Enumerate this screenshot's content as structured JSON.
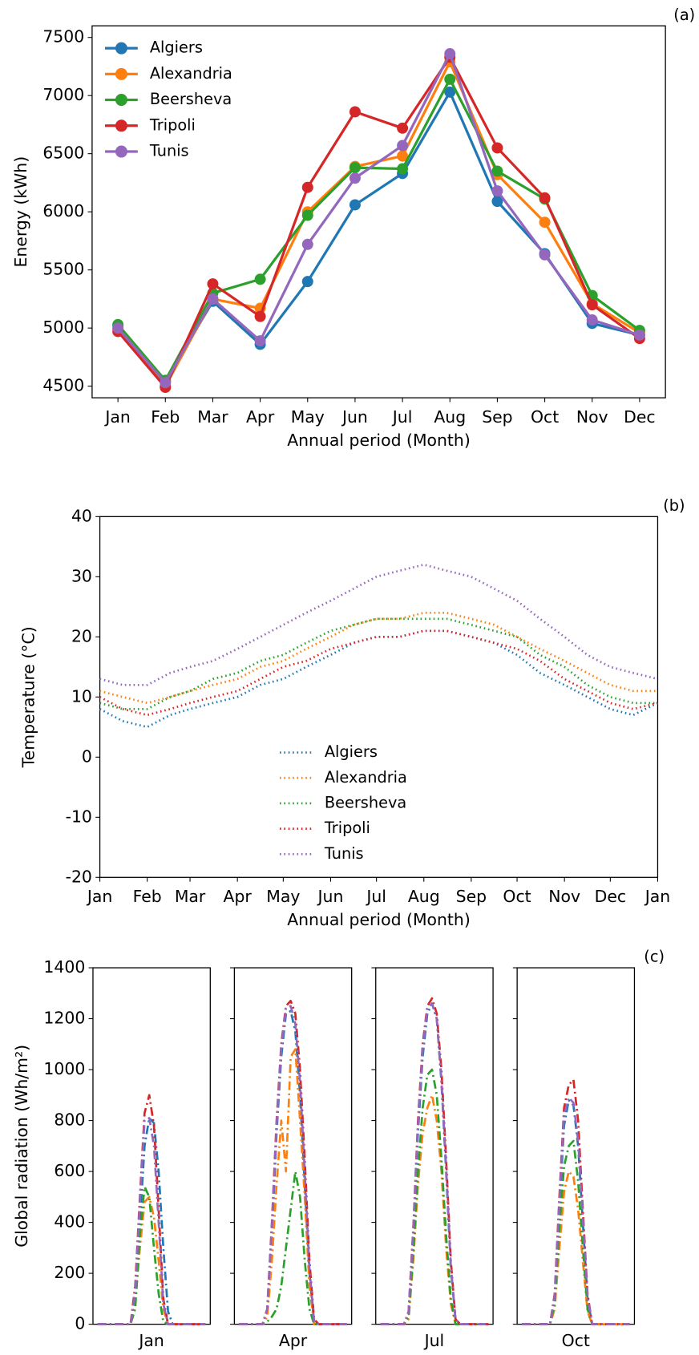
{
  "chart_data": [
    {
      "type": "line",
      "panel_label": "(a)",
      "xlabel": "Annual period (Month)",
      "ylabel": "Energy (kWh)",
      "categories": [
        "Jan",
        "Feb",
        "Mar",
        "Apr",
        "May",
        "Jun",
        "Jul",
        "Aug",
        "Sep",
        "Oct",
        "Nov",
        "Dec"
      ],
      "ylim": [
        4400,
        7600
      ],
      "yticks": [
        4500,
        5000,
        5500,
        6000,
        6500,
        7000,
        7500
      ],
      "markers": true,
      "legend": "upper left",
      "series": [
        {
          "name": "Algiers",
          "color": "#1f77b4",
          "values": [
            5020,
            4540,
            5230,
            4860,
            5400,
            6060,
            6330,
            7030,
            6090,
            5640,
            5040,
            4940
          ]
        },
        {
          "name": "Alexandria",
          "color": "#ff7f0e",
          "values": [
            4990,
            4500,
            5250,
            5170,
            6000,
            6390,
            6480,
            7290,
            6320,
            5910,
            5210,
            4960
          ]
        },
        {
          "name": "Beersheva",
          "color": "#2ca02c",
          "values": [
            5030,
            4550,
            5300,
            5420,
            5970,
            6380,
            6370,
            7140,
            6350,
            6110,
            5280,
            4980
          ]
        },
        {
          "name": "Tripoli",
          "color": "#d62728",
          "values": [
            4970,
            4490,
            5380,
            5100,
            6210,
            6860,
            6720,
            7330,
            6550,
            6120,
            5200,
            4910
          ]
        },
        {
          "name": "Tunis",
          "color": "#9467bd",
          "values": [
            5000,
            4530,
            5250,
            4890,
            5720,
            6290,
            6570,
            7360,
            6180,
            5630,
            5070,
            4940
          ]
        }
      ]
    },
    {
      "type": "line",
      "panel_label": "(b)",
      "xlabel": "Annual period (Month)",
      "ylabel": "Temperature (°C)",
      "x": [
        0,
        15,
        31,
        46,
        59,
        74,
        90,
        105,
        120,
        135,
        151,
        166,
        181,
        196,
        212,
        227,
        243,
        258,
        273,
        288,
        304,
        319,
        334,
        349,
        365
      ],
      "xlim": [
        0,
        365
      ],
      "xticks": [
        {
          "value": 0,
          "label": "Jan"
        },
        {
          "value": 31,
          "label": "Feb"
        },
        {
          "value": 59,
          "label": "Mar"
        },
        {
          "value": 90,
          "label": "Apr"
        },
        {
          "value": 120,
          "label": "May"
        },
        {
          "value": 151,
          "label": "Jun"
        },
        {
          "value": 181,
          "label": "Jul"
        },
        {
          "value": 212,
          "label": "Aug"
        },
        {
          "value": 243,
          "label": "Sep"
        },
        {
          "value": 273,
          "label": "Oct"
        },
        {
          "value": 304,
          "label": "Nov"
        },
        {
          "value": 334,
          "label": "Dec"
        },
        {
          "value": 365,
          "label": "Jan"
        }
      ],
      "ylim": [
        -20,
        40
      ],
      "yticks": [
        -20,
        -10,
        0,
        10,
        20,
        30,
        40
      ],
      "line_style": "dotted",
      "legend": "lower center",
      "series": [
        {
          "name": "Algiers",
          "color": "#1f77b4",
          "values": [
            8,
            6,
            5,
            7,
            8,
            9,
            10,
            12,
            13,
            15,
            17,
            19,
            20,
            20,
            21,
            21,
            20,
            19,
            17,
            14,
            12,
            10,
            8,
            7,
            9
          ]
        },
        {
          "name": "Alexandria",
          "color": "#ff7f0e",
          "values": [
            11,
            10,
            9,
            10,
            11,
            12,
            13,
            15,
            16,
            18,
            20,
            22,
            23,
            23,
            24,
            24,
            23,
            22,
            20,
            18,
            16,
            14,
            12,
            11,
            11
          ]
        },
        {
          "name": "Beersheva",
          "color": "#2ca02c",
          "values": [
            9,
            8,
            8,
            10,
            11,
            13,
            14,
            16,
            17,
            19,
            21,
            22,
            23,
            23,
            23,
            23,
            22,
            21,
            20,
            17,
            15,
            12,
            10,
            9,
            9
          ]
        },
        {
          "name": "Tripoli",
          "color": "#d62728",
          "values": [
            10,
            8,
            7,
            8,
            9,
            10,
            11,
            13,
            15,
            16,
            18,
            19,
            20,
            20,
            21,
            21,
            20,
            19,
            18,
            16,
            13,
            11,
            9,
            8,
            9
          ]
        },
        {
          "name": "Tunis",
          "color": "#9467bd",
          "values": [
            13,
            12,
            12,
            14,
            15,
            16,
            18,
            20,
            22,
            24,
            26,
            28,
            30,
            31,
            32,
            31,
            30,
            28,
            26,
            23,
            20,
            17,
            15,
            14,
            13
          ]
        }
      ]
    },
    {
      "type": "line",
      "panel_label": "(c)",
      "ylabel": "Global radiation (Wh/m²)",
      "ylim": [
        0,
        1400
      ],
      "yticks": [
        0,
        200,
        400,
        600,
        800,
        1000,
        1200,
        1400
      ],
      "line_style": "dashdot",
      "panels": [
        {
          "label": "Jan",
          "series": [
            {
              "color": "#1f77b4",
              "values": [
                0,
                0,
                0,
                0,
                0,
                0,
                0,
                0,
                100,
                400,
                700,
                810,
                790,
                600,
                300,
                50,
                0,
                0,
                0,
                0,
                0,
                0,
                0,
                0
              ]
            },
            {
              "color": "#ff7f0e",
              "values": [
                0,
                0,
                0,
                0,
                0,
                0,
                0,
                0,
                80,
                300,
                480,
                500,
                420,
                250,
                60,
                0,
                0,
                0,
                0,
                0,
                0,
                0,
                0,
                0
              ]
            },
            {
              "color": "#2ca02c",
              "values": [
                0,
                0,
                0,
                0,
                0,
                0,
                0,
                0,
                60,
                350,
                540,
                500,
                300,
                120,
                10,
                0,
                0,
                0,
                0,
                0,
                0,
                0,
                0,
                0
              ]
            },
            {
              "color": "#d62728",
              "values": [
                0,
                0,
                0,
                0,
                0,
                0,
                0,
                0,
                150,
                500,
                830,
                900,
                780,
                450,
                100,
                0,
                0,
                0,
                0,
                0,
                0,
                0,
                0,
                0
              ]
            },
            {
              "color": "#9467bd",
              "values": [
                0,
                0,
                0,
                0,
                0,
                0,
                0,
                0,
                120,
                480,
                800,
                810,
                700,
                400,
                80,
                0,
                0,
                0,
                0,
                0,
                0,
                0,
                0,
                0
              ]
            }
          ]
        },
        {
          "label": "Apr",
          "series": [
            {
              "color": "#1f77b4",
              "values": [
                0,
                0,
                0,
                0,
                0,
                0,
                50,
                350,
                750,
                1050,
                1220,
                1230,
                1150,
                900,
                550,
                200,
                10,
                0,
                0,
                0,
                0,
                0,
                0,
                0
              ]
            },
            {
              "color": "#ff7f0e",
              "values": [
                0,
                0,
                0,
                0,
                0,
                0,
                30,
                250,
                550,
                800,
                600,
                1050,
                1080,
                800,
                500,
                150,
                0,
                0,
                0,
                0,
                0,
                0,
                0,
                0
              ]
            },
            {
              "color": "#2ca02c",
              "values": [
                0,
                0,
                0,
                0,
                0,
                0,
                10,
                30,
                60,
                150,
                300,
                450,
                600,
                500,
                250,
                60,
                0,
                0,
                0,
                0,
                0,
                0,
                0,
                0
              ]
            },
            {
              "color": "#d62728",
              "values": [
                0,
                0,
                0,
                0,
                0,
                0,
                60,
                400,
                800,
                1100,
                1250,
                1270,
                1220,
                1000,
                650,
                250,
                20,
                0,
                0,
                0,
                0,
                0,
                0,
                0
              ]
            },
            {
              "color": "#9467bd",
              "values": [
                0,
                0,
                0,
                0,
                0,
                0,
                60,
                380,
                780,
                1080,
                1240,
                1250,
                1180,
                950,
                600,
                220,
                10,
                0,
                0,
                0,
                0,
                0,
                0,
                0
              ]
            }
          ]
        },
        {
          "label": "Jul",
          "series": [
            {
              "color": "#1f77b4",
              "values": [
                0,
                0,
                0,
                0,
                0,
                0,
                40,
                350,
                750,
                1050,
                1220,
                1260,
                1200,
                950,
                600,
                220,
                20,
                0,
                0,
                0,
                0,
                0,
                0,
                0
              ]
            },
            {
              "color": "#ff7f0e",
              "values": [
                0,
                0,
                0,
                0,
                0,
                0,
                20,
                250,
                550,
                750,
                850,
                900,
                800,
                600,
                300,
                80,
                0,
                0,
                0,
                0,
                0,
                0,
                0,
                0
              ]
            },
            {
              "color": "#2ca02c",
              "values": [
                0,
                0,
                0,
                0,
                0,
                0,
                30,
                280,
                600,
                850,
                980,
                1000,
                900,
                650,
                350,
                100,
                0,
                0,
                0,
                0,
                0,
                0,
                0,
                0
              ]
            },
            {
              "color": "#d62728",
              "values": [
                0,
                0,
                0,
                0,
                0,
                0,
                50,
                380,
                800,
                1100,
                1250,
                1280,
                1220,
                1000,
                650,
                250,
                20,
                0,
                0,
                0,
                0,
                0,
                0,
                0
              ]
            },
            {
              "color": "#9467bd",
              "values": [
                0,
                0,
                0,
                0,
                0,
                0,
                50,
                370,
                780,
                1080,
                1240,
                1260,
                1200,
                960,
                620,
                230,
                20,
                0,
                0,
                0,
                0,
                0,
                0,
                0
              ]
            }
          ]
        },
        {
          "label": "Oct",
          "series": [
            {
              "color": "#1f77b4",
              "values": [
                0,
                0,
                0,
                0,
                0,
                0,
                0,
                100,
                450,
                780,
                880,
                860,
                700,
                400,
                100,
                0,
                0,
                0,
                0,
                0,
                0,
                0,
                0,
                0
              ]
            },
            {
              "color": "#ff7f0e",
              "values": [
                0,
                0,
                0,
                0,
                0,
                0,
                0,
                60,
                300,
                520,
                600,
                580,
                450,
                250,
                50,
                0,
                0,
                0,
                0,
                0,
                0,
                0,
                0,
                0
              ]
            },
            {
              "color": "#2ca02c",
              "values": [
                0,
                0,
                0,
                0,
                0,
                0,
                0,
                80,
                380,
                620,
                700,
                720,
                560,
                300,
                60,
                0,
                0,
                0,
                0,
                0,
                0,
                0,
                0,
                0
              ]
            },
            {
              "color": "#d62728",
              "values": [
                0,
                0,
                0,
                0,
                0,
                0,
                0,
                120,
                500,
                850,
                940,
                960,
                800,
                450,
                120,
                0,
                0,
                0,
                0,
                0,
                0,
                0,
                0,
                0
              ]
            },
            {
              "color": "#9467bd",
              "values": [
                0,
                0,
                0,
                0,
                0,
                0,
                0,
                110,
                480,
                820,
                890,
                870,
                720,
                420,
                110,
                0,
                0,
                0,
                0,
                0,
                0,
                0,
                0,
                0
              ]
            }
          ]
        }
      ]
    }
  ]
}
